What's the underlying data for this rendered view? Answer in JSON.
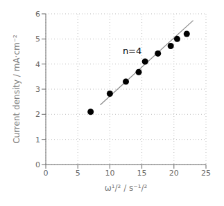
{
  "chart_data": {
    "type": "scatter",
    "xlabel": "ω¹/² / s⁻¹/²",
    "ylabel": "Current density / mA·cm⁻²",
    "series": [
      {
        "type": "line",
        "color": "#888888",
        "x": [
          8.5,
          23.0
        ],
        "values": [
          2.372,
          5.736
        ]
      },
      {
        "type": "scatter",
        "color": "black",
        "x": [
          7.0,
          10.0,
          12.5,
          14.5,
          15.5,
          17.5,
          19.5,
          20.5,
          22.0
        ],
        "values": [
          2.1,
          2.82,
          3.3,
          3.68,
          4.1,
          4.42,
          4.72,
          5.0,
          5.2
        ]
      }
    ],
    "annotations": [
      {
        "text": "n=4",
        "x": 12.0,
        "y": 4.4
      }
    ],
    "xlim": [
      0,
      25
    ],
    "ylim": [
      0,
      6
    ],
    "xticks": [
      0,
      5,
      10,
      15,
      20,
      25
    ],
    "yticks": [
      0,
      1,
      2,
      3,
      4,
      5,
      6
    ],
    "grid": true
  }
}
